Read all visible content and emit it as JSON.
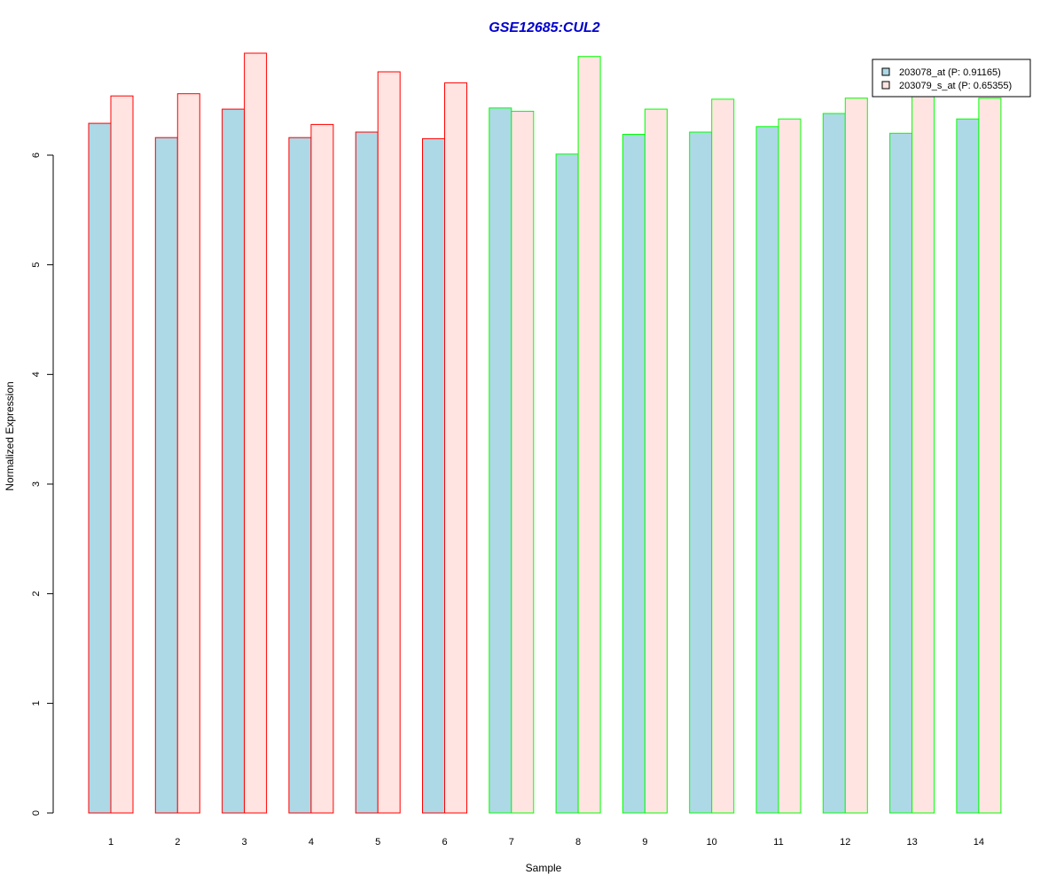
{
  "chart_data": {
    "type": "bar",
    "title": "GSE12685:CUL2",
    "xlabel": "Sample",
    "ylabel": "Normalized Expression",
    "ylim": [
      0,
      7
    ],
    "yticks": [
      0,
      1,
      2,
      3,
      4,
      5,
      6
    ],
    "categories": [
      "1",
      "2",
      "3",
      "4",
      "5",
      "6",
      "7",
      "8",
      "9",
      "10",
      "11",
      "12",
      "13",
      "14"
    ],
    "series": [
      {
        "name": "203078_at (P: 0.91165)",
        "fill": "#add8e6",
        "values": [
          6.29,
          6.16,
          6.42,
          6.16,
          6.21,
          6.15,
          6.43,
          6.01,
          6.19,
          6.21,
          6.26,
          6.38,
          6.2,
          6.33
        ]
      },
      {
        "name": "203079_s_at (P: 0.65355)",
        "fill": "#ffe4e1",
        "values": [
          6.54,
          6.56,
          6.93,
          6.28,
          6.76,
          6.66,
          6.4,
          6.9,
          6.42,
          6.51,
          6.33,
          6.52,
          6.6,
          6.52
        ]
      }
    ],
    "group_border_colors": [
      "#ff0000",
      "#ff0000",
      "#ff0000",
      "#ff0000",
      "#ff0000",
      "#ff0000",
      "#00ff00",
      "#00ff00",
      "#00ff00",
      "#00ff00",
      "#00ff00",
      "#00ff00",
      "#00ff00",
      "#00ff00"
    ],
    "title_color": "#0000cd",
    "legend_position": "top-right",
    "grid": false
  }
}
